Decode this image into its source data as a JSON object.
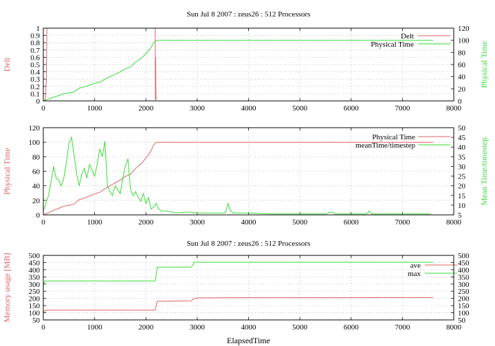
{
  "chart_data": [
    {
      "type": "line",
      "title": "Sun Jul  8 2007 : zeus26 : 512 Processors",
      "ylabel": "Delt",
      "y2label": "Physical Time",
      "xlim": [
        0,
        8000
      ],
      "ylim": [
        0,
        1
      ],
      "y2lim": [
        0,
        120
      ],
      "xticks": [
        "0",
        "1000",
        "2000",
        "3000",
        "4000",
        "5000",
        "6000",
        "7000",
        "8000"
      ],
      "yticks": [
        "0",
        "0.1",
        "0.2",
        "0.3",
        "0.4",
        "0.5",
        "0.6",
        "0.7",
        "0.8",
        "0.9",
        "1"
      ],
      "y2ticks": [
        "0",
        "20",
        "40",
        "60",
        "80",
        "100",
        "120"
      ],
      "grid": true,
      "legend": "top-right",
      "series": [
        {
          "name": "Delt",
          "axis": "left",
          "color": "#e06060",
          "x": [
            0,
            40,
            60,
            70,
            80,
            2170,
            2180,
            2185,
            2190,
            2195,
            2200
          ],
          "y": [
            0,
            0.02,
            0.3,
            1.0,
            1.0,
            1.0,
            1.0,
            0.0,
            0.6,
            0.1,
            0.02
          ]
        },
        {
          "name": "Physical Time",
          "axis": "right",
          "color": "#33dd33",
          "x": [
            0,
            100,
            200,
            300,
            400,
            500,
            600,
            700,
            800,
            900,
            1000,
            1100,
            1200,
            1300,
            1400,
            1500,
            1600,
            1700,
            1800,
            1900,
            2000,
            2100,
            2150,
            2200,
            3000,
            5000,
            7000,
            7600
          ],
          "y": [
            0,
            3,
            6,
            9,
            12,
            13,
            15,
            21,
            23,
            26,
            29,
            31,
            36,
            40,
            44,
            48,
            53,
            56,
            64,
            70,
            78,
            88,
            96,
            100,
            100,
            100,
            100,
            100
          ]
        }
      ]
    },
    {
      "type": "line",
      "title": "",
      "ylabel": "Physical Time",
      "y2label": "Mean Time/timestep",
      "xlim": [
        0,
        8000
      ],
      "ylim": [
        0,
        120
      ],
      "y2lim": [
        5,
        50
      ],
      "xticks": [
        "0",
        "1000",
        "2000",
        "3000",
        "4000",
        "5000",
        "6000",
        "7000",
        "8000"
      ],
      "yticks": [
        "0",
        "20",
        "40",
        "60",
        "80",
        "100",
        "120"
      ],
      "y2ticks": [
        "5",
        "10",
        "15",
        "20",
        "25",
        "30",
        "35",
        "40",
        "45",
        "50"
      ],
      "grid": true,
      "legend": "top-right",
      "series": [
        {
          "name": "Physical Time",
          "axis": "left",
          "color": "#e06060",
          "x": [
            0,
            100,
            200,
            300,
            400,
            500,
            600,
            700,
            800,
            900,
            1000,
            1100,
            1200,
            1300,
            1400,
            1500,
            1600,
            1700,
            1800,
            1900,
            2000,
            2100,
            2150,
            2200,
            3000,
            5000,
            7000,
            7600
          ],
          "y": [
            0,
            3,
            6,
            9,
            12,
            13,
            15,
            21,
            23,
            26,
            29,
            31,
            36,
            40,
            44,
            48,
            53,
            56,
            64,
            70,
            78,
            88,
            96,
            100,
            100,
            100,
            100,
            100
          ]
        },
        {
          "name": "meanTime/timestep",
          "axis": "right",
          "color": "#33dd33",
          "x": [
            0,
            50,
            100,
            150,
            200,
            250,
            300,
            350,
            400,
            450,
            500,
            550,
            600,
            650,
            700,
            750,
            800,
            850,
            900,
            950,
            1000,
            1050,
            1100,
            1150,
            1200,
            1250,
            1300,
            1350,
            1400,
            1450,
            1500,
            1550,
            1600,
            1650,
            1700,
            1750,
            1800,
            1850,
            1900,
            1950,
            2000,
            2050,
            2100,
            2150,
            2200,
            2250,
            2300,
            2400,
            2600,
            2800,
            3000,
            3200,
            3400,
            3550,
            3600,
            3650,
            3700,
            4000,
            4500,
            5000,
            5500,
            5600,
            5700,
            6000,
            6300,
            6350,
            6400,
            7000,
            7550
          ],
          "y": [
            7,
            11,
            15,
            22,
            30,
            24,
            23,
            20,
            24,
            32,
            42,
            45,
            36,
            26,
            20,
            26,
            29,
            24,
            31,
            28,
            25,
            31,
            39,
            35,
            43,
            20,
            17,
            15,
            20,
            18,
            16,
            24,
            30,
            34,
            18,
            15,
            17,
            14,
            12,
            16,
            11,
            14,
            8,
            9,
            11,
            8,
            7,
            7,
            6,
            6.5,
            6,
            6,
            6,
            6,
            11,
            7,
            6,
            6,
            5.5,
            5.5,
            5.5,
            6.5,
            5.5,
            5.5,
            5.5,
            7,
            5.5,
            5.5,
            5.5
          ]
        }
      ]
    },
    {
      "type": "line",
      "title": "Sun Jul  8 2007 : zeus26 : 512 Processors",
      "xlabel": "ElapsedTime",
      "ylabel": "Memory usage [MB]",
      "xlim": [
        0,
        8000
      ],
      "ylim": [
        50,
        500
      ],
      "y2lim": [
        50,
        500
      ],
      "xticks": [
        "0",
        "1000",
        "2000",
        "3000",
        "4000",
        "5000",
        "6000",
        "7000",
        "8000"
      ],
      "yticks": [
        "50",
        "100",
        "150",
        "200",
        "250",
        "300",
        "350",
        "400",
        "450",
        "500"
      ],
      "y2ticks": [
        "50",
        "100",
        "150",
        "200",
        "250",
        "300",
        "350",
        "400",
        "450",
        "500"
      ],
      "grid": true,
      "legend": "top-right",
      "series": [
        {
          "name": "ave",
          "axis": "left",
          "color": "#e06060",
          "x": [
            0,
            20,
            40,
            2180,
            2200,
            2220,
            2880,
            2920,
            3000,
            3500,
            4000,
            5000,
            6000,
            7000,
            7600
          ],
          "y": [
            100,
            112,
            118,
            118,
            150,
            180,
            183,
            195,
            203,
            204,
            205,
            205,
            205,
            206,
            206
          ]
        },
        {
          "name": "max",
          "axis": "left",
          "color": "#33dd33",
          "x": [
            0,
            20,
            40,
            2180,
            2200,
            2220,
            2880,
            2920,
            2940,
            4000,
            5000,
            6000,
            7000,
            7600
          ],
          "y": [
            280,
            318,
            322,
            322,
            360,
            418,
            418,
            435,
            452,
            452,
            452,
            452,
            452,
            452
          ]
        }
      ]
    }
  ]
}
